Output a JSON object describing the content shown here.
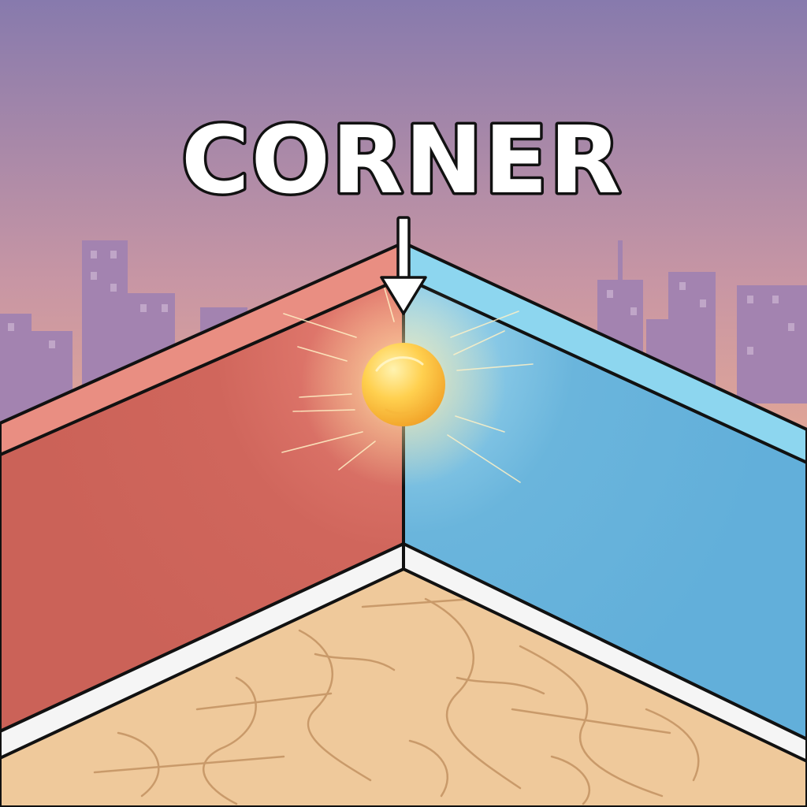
{
  "title": "CORNER",
  "colors": {
    "sky_top": "#8a7cae",
    "sky_bottom": "#f0b089",
    "skyline": "#a07fae",
    "left_wall": "#cf645a",
    "left_wall_top": "#e98d80",
    "right_wall": "#67b2da",
    "right_wall_top": "#8ed6ee",
    "baseboard": "#f4f4f4",
    "floor": "#efc99b",
    "floor_grain": "#c69665",
    "light": "#ffd257",
    "outline": "#111111"
  },
  "icons": [
    "down-arrow-icon",
    "glowing-light-icon"
  ]
}
